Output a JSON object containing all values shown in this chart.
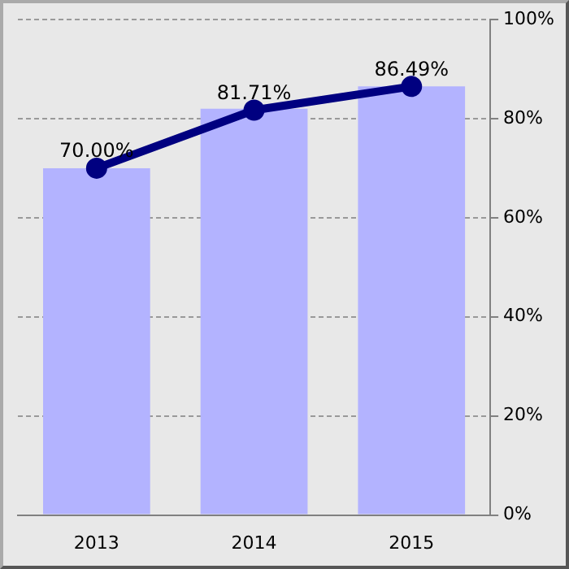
{
  "chart_data": {
    "type": "bar",
    "categories": [
      "2013",
      "2014",
      "2015"
    ],
    "series": [
      {
        "color": "#b3b3ff",
        "values": [
          70,
          82,
          86.5
        ]
      },
      {
        "type": "line",
        "color": "#000080",
        "values": [
          70,
          81.71,
          86.49
        ],
        "value_labels": [
          "70.00%",
          "81.71%",
          "86.49%"
        ]
      }
    ],
    "ylim": [
      0,
      100
    ],
    "yticks": [
      {
        "value": 0,
        "label": "0%"
      },
      {
        "value": 20,
        "label": "20%"
      },
      {
        "value": 40,
        "label": "40%"
      },
      {
        "value": 60,
        "label": "60%"
      },
      {
        "value": 80,
        "label": "80%"
      },
      {
        "value": 100,
        "label": "100%"
      }
    ],
    "grid": "y",
    "legend": false,
    "marker": "circle",
    "line_style": "solid"
  }
}
